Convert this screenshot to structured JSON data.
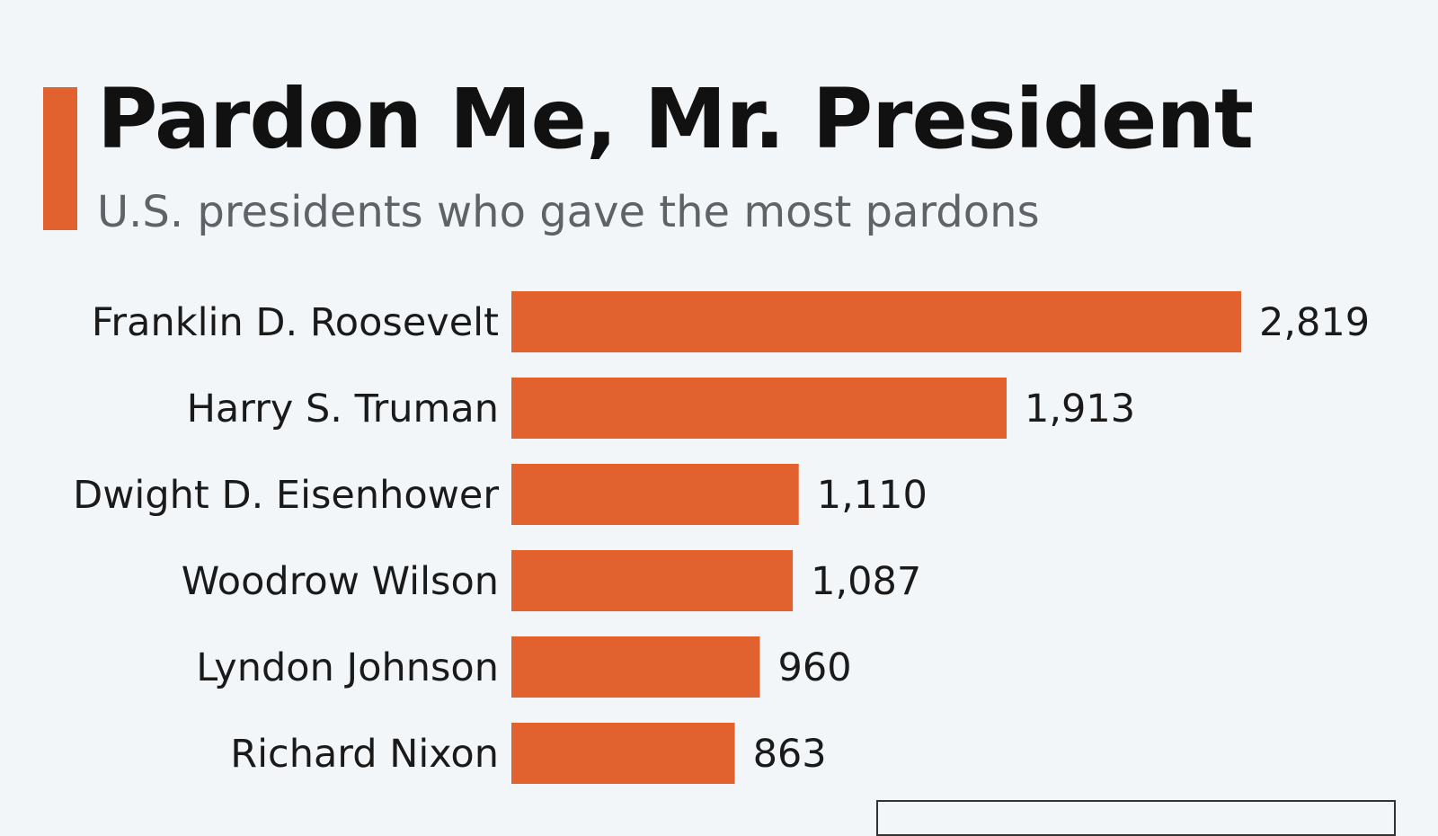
{
  "header": {
    "title": "Pardon Me, Mr. President",
    "subtitle": "U.S. presidents who gave the most pardons"
  },
  "colors": {
    "accent": "#e2622f",
    "bar": "#e2622f",
    "label": "#1a1a1a",
    "value": "#1a1a1a"
  },
  "chart_data": {
    "type": "bar",
    "orientation": "horizontal",
    "categories": [
      "Franklin D. Roosevelt",
      "Harry S. Truman",
      "Dwight D. Eisenhower",
      "Woodrow Wilson",
      "Lyndon Johnson",
      "Richard Nixon"
    ],
    "values": [
      2819,
      1913,
      1110,
      1087,
      960,
      863
    ],
    "value_labels": [
      "2,819",
      "1,913",
      "1,110",
      "1,087",
      "960",
      "863"
    ],
    "xlim": [
      0,
      2819
    ],
    "grid": false,
    "legend": "none"
  }
}
